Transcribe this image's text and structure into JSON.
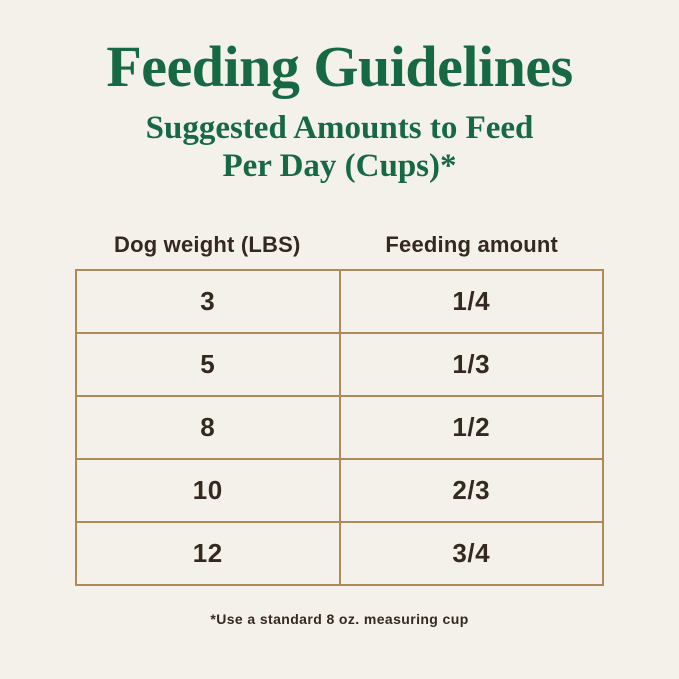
{
  "page": {
    "title": "Feeding Guidelines",
    "subtitle_line1": "Suggested Amounts to Feed",
    "subtitle_line2": "Per Day (Cups)*",
    "footnote": "*Use a standard 8 oz. measuring cup"
  },
  "table": {
    "columns": [
      "Dog weight (LBS)",
      "Feeding amount"
    ],
    "rows": [
      {
        "weight": "3",
        "amount": "1/4"
      },
      {
        "weight": "5",
        "amount": "1/3"
      },
      {
        "weight": "8",
        "amount": "1/2"
      },
      {
        "weight": "10",
        "amount": "2/3"
      },
      {
        "weight": "12",
        "amount": "3/4"
      }
    ]
  },
  "colors": {
    "background": "#f3f1ea",
    "heading_green": "#176943",
    "border_tan": "#ad8a58",
    "text_dark": "#35281f"
  },
  "chart_data": {
    "type": "table",
    "title": "Feeding Guidelines",
    "subtitle": "Suggested Amounts to Feed Per Day (Cups)*",
    "columns": [
      "Dog weight (LBS)",
      "Feeding amount"
    ],
    "rows": [
      [
        "3",
        "1/4"
      ],
      [
        "5",
        "1/3"
      ],
      [
        "8",
        "1/2"
      ],
      [
        "10",
        "2/3"
      ],
      [
        "12",
        "3/4"
      ]
    ],
    "footnote": "*Use a standard 8 oz. measuring cup",
    "units": "cups per day"
  }
}
